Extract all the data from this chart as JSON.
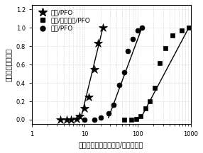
{
  "title": "",
  "xlabel": "泵浦能量强度（微焦耳/平方厘米）",
  "ylabel": "归一化的输出强度",
  "xlim": [
    1,
    1000
  ],
  "ylim": [
    -0.05,
    1.25
  ],
  "yticks": [
    0.0,
    0.2,
    0.4,
    0.6,
    0.8,
    1.0,
    1.2
  ],
  "legend": [
    "石英/PFO",
    "玻璃/氧化铟锡/PFO",
    "玻璃/PFO"
  ],
  "series_star": {
    "x_data": [
      3.5,
      4.5,
      5.5,
      7,
      8,
      10,
      12,
      15,
      18,
      22
    ],
    "y_data": [
      0.0,
      0.0,
      0.0,
      0.01,
      0.04,
      0.12,
      0.25,
      0.55,
      0.83,
      1.0
    ],
    "fit_x": [
      8.5,
      22
    ],
    "fit_y": [
      0.02,
      1.0
    ],
    "marker": "*",
    "color": "black"
  },
  "series_circle": {
    "x_data": [
      10,
      15,
      20,
      28,
      35,
      45,
      55,
      65,
      80,
      100,
      120
    ],
    "y_data": [
      0.0,
      0.0,
      0.02,
      0.07,
      0.16,
      0.38,
      0.52,
      0.75,
      0.88,
      0.97,
      1.0
    ],
    "fit_x": [
      28,
      120
    ],
    "fit_y": [
      0.02,
      1.0
    ],
    "marker": "o",
    "color": "black"
  },
  "series_square": {
    "x_data": [
      55,
      75,
      95,
      115,
      140,
      170,
      210,
      260,
      330,
      460,
      670,
      920
    ],
    "y_data": [
      0.0,
      0.0,
      0.01,
      0.04,
      0.12,
      0.2,
      0.35,
      0.62,
      0.78,
      0.92,
      0.97,
      1.0
    ],
    "fit_x": [
      115,
      920
    ],
    "fit_y": [
      0.02,
      1.0
    ],
    "marker": "s",
    "color": "black"
  },
  "background_color": "#ffffff",
  "font_size_label": 7,
  "font_size_tick": 6,
  "font_size_legend": 6.5
}
